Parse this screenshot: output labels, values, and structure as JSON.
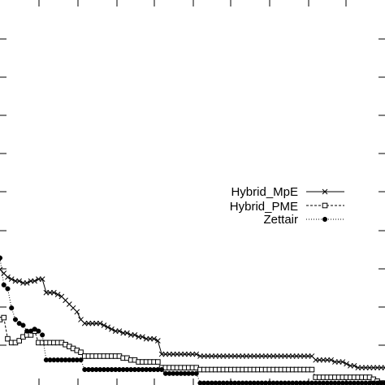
{
  "chart_data": {
    "type": "line",
    "title": "",
    "xlabel": "",
    "ylabel": "",
    "xlim": [
      0,
      100
    ],
    "ylim": [
      0,
      100
    ],
    "grid": false,
    "legend_position": "right",
    "series": [
      {
        "name": "Hybrid_MpE",
        "style": "solid",
        "marker": "cross",
        "color": "#000000",
        "points": [
          [
            0,
            30
          ],
          [
            1,
            29
          ],
          [
            2,
            28
          ],
          [
            3,
            27.5
          ],
          [
            4,
            27
          ],
          [
            5,
            27
          ],
          [
            6,
            26.5
          ],
          [
            7,
            26.5
          ],
          [
            8,
            27
          ],
          [
            9,
            27
          ],
          [
            10,
            27.5
          ],
          [
            11,
            27.5
          ],
          [
            12,
            24
          ],
          [
            13,
            24
          ],
          [
            14,
            24
          ],
          [
            15,
            23.5
          ],
          [
            16,
            23
          ],
          [
            17,
            22
          ],
          [
            18,
            21
          ],
          [
            19,
            20
          ],
          [
            20,
            19
          ],
          [
            21,
            17
          ],
          [
            22,
            16
          ],
          [
            23,
            16
          ],
          [
            24,
            16
          ],
          [
            25,
            16
          ],
          [
            26,
            16
          ],
          [
            27,
            15.5
          ],
          [
            28,
            15
          ],
          [
            29,
            14.5
          ],
          [
            30,
            14
          ],
          [
            31,
            14
          ],
          [
            32,
            13.5
          ],
          [
            33,
            13.5
          ],
          [
            34,
            13
          ],
          [
            35,
            13
          ],
          [
            36,
            12.5
          ],
          [
            37,
            12.5
          ],
          [
            38,
            12
          ],
          [
            39,
            12
          ],
          [
            40,
            12
          ],
          [
            41,
            11.5
          ],
          [
            42,
            8
          ],
          [
            43,
            8
          ],
          [
            44,
            8
          ],
          [
            45,
            8
          ],
          [
            46,
            8
          ],
          [
            47,
            8
          ],
          [
            48,
            8
          ],
          [
            49,
            8
          ],
          [
            50,
            8
          ],
          [
            51,
            8
          ],
          [
            52,
            7.5
          ],
          [
            53,
            7.5
          ],
          [
            54,
            7.5
          ],
          [
            55,
            7.5
          ],
          [
            56,
            7.5
          ],
          [
            57,
            7.5
          ],
          [
            58,
            7.5
          ],
          [
            59,
            7.5
          ],
          [
            60,
            7.5
          ],
          [
            61,
            7.5
          ],
          [
            62,
            7.5
          ],
          [
            63,
            7.5
          ],
          [
            64,
            7.5
          ],
          [
            65,
            7.5
          ],
          [
            66,
            7.5
          ],
          [
            67,
            7.5
          ],
          [
            68,
            7.5
          ],
          [
            69,
            7.5
          ],
          [
            70,
            7.5
          ],
          [
            71,
            7.5
          ],
          [
            72,
            7.5
          ],
          [
            73,
            7.5
          ],
          [
            74,
            7.5
          ],
          [
            75,
            7.5
          ],
          [
            76,
            7.5
          ],
          [
            77,
            7.5
          ],
          [
            78,
            7.5
          ],
          [
            79,
            7.5
          ],
          [
            80,
            7.5
          ],
          [
            81,
            7.5
          ],
          [
            82,
            6.5
          ],
          [
            83,
            6.5
          ],
          [
            84,
            6.5
          ],
          [
            85,
            6.5
          ],
          [
            86,
            6.5
          ],
          [
            87,
            6
          ],
          [
            88,
            6
          ],
          [
            89,
            6
          ],
          [
            90,
            5.5
          ],
          [
            91,
            5
          ],
          [
            92,
            5
          ],
          [
            93,
            4.5
          ],
          [
            94,
            4.5
          ],
          [
            95,
            4.5
          ],
          [
            96,
            4.5
          ],
          [
            97,
            4.5
          ],
          [
            98,
            4.5
          ],
          [
            99,
            4.5
          ],
          [
            100,
            4.5
          ]
        ]
      },
      {
        "name": "Hybrid_PME",
        "style": "dashed",
        "marker": "square",
        "color": "#000000",
        "points": [
          [
            0,
            17
          ],
          [
            1,
            17.5
          ],
          [
            2,
            12
          ],
          [
            3,
            11
          ],
          [
            4,
            11
          ],
          [
            5,
            11.5
          ],
          [
            6,
            12.5
          ],
          [
            7,
            13
          ],
          [
            8,
            13
          ],
          [
            9,
            14
          ],
          [
            10,
            11
          ],
          [
            11,
            11
          ],
          [
            12,
            11
          ],
          [
            13,
            11
          ],
          [
            14,
            11
          ],
          [
            15,
            11
          ],
          [
            16,
            11
          ],
          [
            17,
            10.5
          ],
          [
            18,
            10
          ],
          [
            19,
            9.5
          ],
          [
            20,
            9
          ],
          [
            21,
            8.5
          ],
          [
            22,
            7.5
          ],
          [
            23,
            7.5
          ],
          [
            24,
            7.5
          ],
          [
            25,
            7.5
          ],
          [
            26,
            7.5
          ],
          [
            27,
            7.5
          ],
          [
            28,
            7.5
          ],
          [
            29,
            7.5
          ],
          [
            30,
            7.5
          ],
          [
            31,
            7.5
          ],
          [
            32,
            7
          ],
          [
            33,
            7
          ],
          [
            34,
            6.5
          ],
          [
            35,
            6.5
          ],
          [
            36,
            6
          ],
          [
            37,
            6
          ],
          [
            38,
            6
          ],
          [
            39,
            6
          ],
          [
            40,
            6
          ],
          [
            41,
            6
          ],
          [
            42,
            4.5
          ],
          [
            43,
            4.5
          ],
          [
            44,
            4.5
          ],
          [
            45,
            4.5
          ],
          [
            46,
            4.5
          ],
          [
            47,
            4.5
          ],
          [
            48,
            4.5
          ],
          [
            49,
            4.5
          ],
          [
            50,
            4.5
          ],
          [
            51,
            4.5
          ],
          [
            52,
            4
          ],
          [
            53,
            4
          ],
          [
            54,
            4
          ],
          [
            55,
            4
          ],
          [
            56,
            4
          ],
          [
            57,
            4
          ],
          [
            58,
            4
          ],
          [
            59,
            4
          ],
          [
            60,
            4
          ],
          [
            61,
            4
          ],
          [
            62,
            4
          ],
          [
            63,
            4
          ],
          [
            64,
            4
          ],
          [
            65,
            4
          ],
          [
            66,
            4
          ],
          [
            67,
            4
          ],
          [
            68,
            4
          ],
          [
            69,
            4
          ],
          [
            70,
            4
          ],
          [
            71,
            4
          ],
          [
            72,
            4
          ],
          [
            73,
            4
          ],
          [
            74,
            4
          ],
          [
            75,
            4
          ],
          [
            76,
            4
          ],
          [
            77,
            4
          ],
          [
            78,
            4
          ],
          [
            79,
            4
          ],
          [
            80,
            4
          ],
          [
            81,
            4
          ],
          [
            82,
            2
          ],
          [
            83,
            2
          ],
          [
            84,
            2
          ],
          [
            85,
            2
          ],
          [
            86,
            2
          ],
          [
            87,
            2
          ],
          [
            88,
            2
          ],
          [
            89,
            2
          ],
          [
            90,
            2
          ],
          [
            91,
            2
          ],
          [
            92,
            2
          ],
          [
            93,
            2
          ],
          [
            94,
            2
          ],
          [
            95,
            2
          ],
          [
            96,
            2
          ],
          [
            97,
            1.5
          ],
          [
            98,
            1
          ],
          [
            99,
            0.5
          ],
          [
            100,
            0.5
          ]
        ]
      },
      {
        "name": "Zettair",
        "style": "dotted",
        "marker": "filled-circle",
        "color": "#000000",
        "points": [
          [
            0,
            33
          ],
          [
            1,
            26
          ],
          [
            2,
            25
          ],
          [
            3,
            20
          ],
          [
            4,
            17
          ],
          [
            5,
            16
          ],
          [
            6,
            15.5
          ],
          [
            7,
            14
          ],
          [
            8,
            14
          ],
          [
            9,
            14.5
          ],
          [
            10,
            14
          ],
          [
            11,
            13
          ],
          [
            12,
            6.5
          ],
          [
            13,
            6.5
          ],
          [
            14,
            6.5
          ],
          [
            15,
            6.5
          ],
          [
            16,
            6.5
          ],
          [
            17,
            6.5
          ],
          [
            18,
            6.5
          ],
          [
            19,
            6.5
          ],
          [
            20,
            6.5
          ],
          [
            21,
            6.5
          ],
          [
            22,
            4
          ],
          [
            23,
            4
          ],
          [
            24,
            4
          ],
          [
            25,
            4
          ],
          [
            26,
            4
          ],
          [
            27,
            4
          ],
          [
            28,
            4
          ],
          [
            29,
            4
          ],
          [
            30,
            4
          ],
          [
            31,
            4
          ],
          [
            32,
            4
          ],
          [
            33,
            4
          ],
          [
            34,
            4
          ],
          [
            35,
            4
          ],
          [
            36,
            4
          ],
          [
            37,
            4
          ],
          [
            38,
            4
          ],
          [
            39,
            4
          ],
          [
            40,
            4
          ],
          [
            41,
            4
          ],
          [
            42,
            4
          ],
          [
            43,
            3
          ],
          [
            44,
            3
          ],
          [
            45,
            3
          ],
          [
            46,
            3
          ],
          [
            47,
            3
          ],
          [
            48,
            3
          ],
          [
            49,
            3
          ],
          [
            50,
            3
          ],
          [
            51,
            3
          ],
          [
            52,
            0.5
          ],
          [
            53,
            0.5
          ],
          [
            54,
            0.5
          ],
          [
            55,
            0.5
          ],
          [
            56,
            0.5
          ],
          [
            57,
            0.5
          ],
          [
            58,
            0.5
          ],
          [
            59,
            0.5
          ],
          [
            60,
            0.5
          ],
          [
            61,
            0.5
          ],
          [
            62,
            0.5
          ],
          [
            63,
            0.5
          ],
          [
            64,
            0.5
          ],
          [
            65,
            0.5
          ],
          [
            66,
            0.5
          ],
          [
            67,
            0.5
          ],
          [
            68,
            0.5
          ],
          [
            69,
            0.5
          ],
          [
            70,
            0.5
          ],
          [
            71,
            0.5
          ],
          [
            72,
            0.5
          ],
          [
            73,
            0.5
          ],
          [
            74,
            0.5
          ],
          [
            75,
            0.5
          ],
          [
            76,
            0.5
          ],
          [
            77,
            0.5
          ],
          [
            78,
            0.5
          ],
          [
            79,
            0.5
          ],
          [
            80,
            0.5
          ],
          [
            81,
            0.5
          ],
          [
            82,
            0.5
          ],
          [
            83,
            0.5
          ],
          [
            84,
            0.5
          ],
          [
            85,
            0.5
          ],
          [
            86,
            0.5
          ],
          [
            87,
            0.5
          ],
          [
            88,
            0.5
          ],
          [
            89,
            0.5
          ],
          [
            90,
            0.5
          ],
          [
            91,
            0.5
          ],
          [
            92,
            0.5
          ],
          [
            93,
            0.5
          ],
          [
            94,
            0.5
          ],
          [
            95,
            0.5
          ],
          [
            96,
            0.5
          ],
          [
            97,
            0.5
          ],
          [
            98,
            0.5
          ],
          [
            99,
            0.5
          ],
          [
            100,
            0.5
          ]
        ]
      }
    ]
  }
}
